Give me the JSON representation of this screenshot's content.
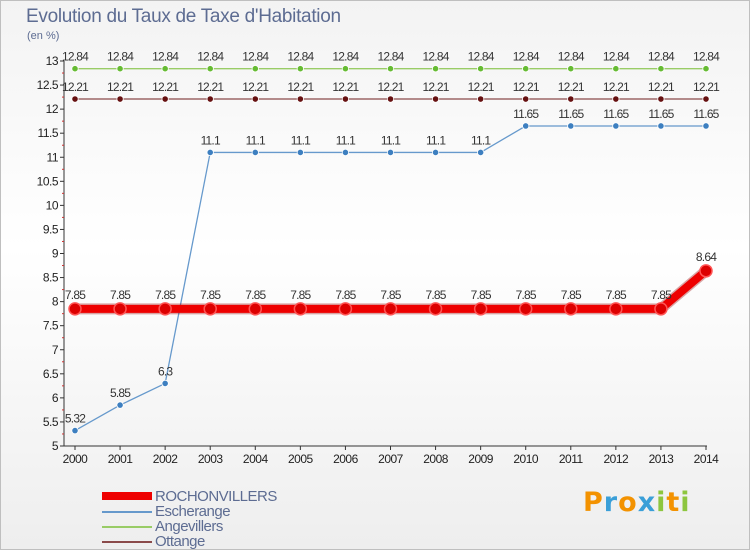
{
  "title": "Evolution du Taux de Taxe d'Habitation",
  "unit_label": "(en %)",
  "logo": {
    "text": "Proxiti",
    "letters": [
      {
        "ch": "P",
        "color": "#f39200"
      },
      {
        "ch": "r",
        "color": "#3a9fd8"
      },
      {
        "ch": "o",
        "color": "#f39200"
      },
      {
        "ch": "x",
        "color": "#3a9fd8"
      },
      {
        "ch": "i",
        "color": "#8dc63f"
      },
      {
        "ch": "t",
        "color": "#f39200"
      },
      {
        "ch": "i",
        "color": "#8dc63f"
      }
    ]
  },
  "chart_data": {
    "type": "line",
    "title": "Evolution du Taux de Taxe d'Habitation",
    "ylabel": "(en %)",
    "xlabel": "",
    "ylim": [
      5,
      13
    ],
    "yticks": [
      "5",
      "5.5",
      "6",
      "6.5",
      "7",
      "7.5",
      "8",
      "8.5",
      "9",
      "9.5",
      "10",
      "10.5",
      "11",
      "11.5",
      "12",
      "12.5",
      "13"
    ],
    "categories": [
      "2000",
      "2001",
      "2002",
      "2003",
      "2004",
      "2005",
      "2006",
      "2007",
      "2008",
      "2009",
      "2010",
      "2011",
      "2012",
      "2013",
      "2014"
    ],
    "series": [
      {
        "name": "Angevillers",
        "color": "#99cc66",
        "marker": "#66bb33",
        "values": [
          12.84,
          12.84,
          12.84,
          12.84,
          12.84,
          12.84,
          12.84,
          12.84,
          12.84,
          12.84,
          12.84,
          12.84,
          12.84,
          12.84,
          12.84
        ],
        "labels": [
          "12.84",
          "12.84",
          "12.84",
          "12.84",
          "12.84",
          "12.84",
          "12.84",
          "12.84",
          "12.84",
          "12.84",
          "12.84",
          "12.84",
          "12.84",
          "12.84",
          "12.84"
        ]
      },
      {
        "name": "Ottange",
        "color": "#8a4a4a",
        "marker": "#661111",
        "values": [
          12.21,
          12.21,
          12.21,
          12.21,
          12.21,
          12.21,
          12.21,
          12.21,
          12.21,
          12.21,
          12.21,
          12.21,
          12.21,
          12.21,
          12.21
        ],
        "labels": [
          "12.21",
          "12.21",
          "12.21",
          "12.21",
          "12.21",
          "12.21",
          "12.21",
          "12.21",
          "12.21",
          "12.21",
          "12.21",
          "12.21",
          "12.21",
          "12.21",
          "12.21"
        ]
      },
      {
        "name": "Escherange",
        "color": "#6699cc",
        "marker": "#3d7fc0",
        "values": [
          5.32,
          5.85,
          6.3,
          11.1,
          11.1,
          11.1,
          11.1,
          11.1,
          11.1,
          11.1,
          11.65,
          11.65,
          11.65,
          11.65,
          11.65
        ],
        "labels": [
          "5.32",
          "5.85",
          "6.3",
          "11.1",
          "11.1",
          "11.1",
          "11.1",
          "11.1",
          "11.1",
          "11.1",
          "11.65",
          "11.65",
          "11.65",
          "11.65",
          "11.65"
        ]
      },
      {
        "name": "ROCHONVILLERS",
        "color": "#ee0000",
        "marker": "#dd0000",
        "bold": true,
        "values": [
          7.85,
          7.85,
          7.85,
          7.85,
          7.85,
          7.85,
          7.85,
          7.85,
          7.85,
          7.85,
          7.85,
          7.85,
          7.85,
          7.85,
          8.64
        ],
        "labels": [
          "7.85",
          "7.85",
          "7.85",
          "7.85",
          "7.85",
          "7.85",
          "7.85",
          "7.85",
          "7.85",
          "7.85",
          "7.85",
          "7.85",
          "7.85",
          "7.85",
          "8.64"
        ]
      }
    ],
    "legend_order": [
      "ROCHONVILLERS",
      "Escherange",
      "Angevillers",
      "Ottange"
    ],
    "legend_position": "bottom-left",
    "grid": false
  }
}
